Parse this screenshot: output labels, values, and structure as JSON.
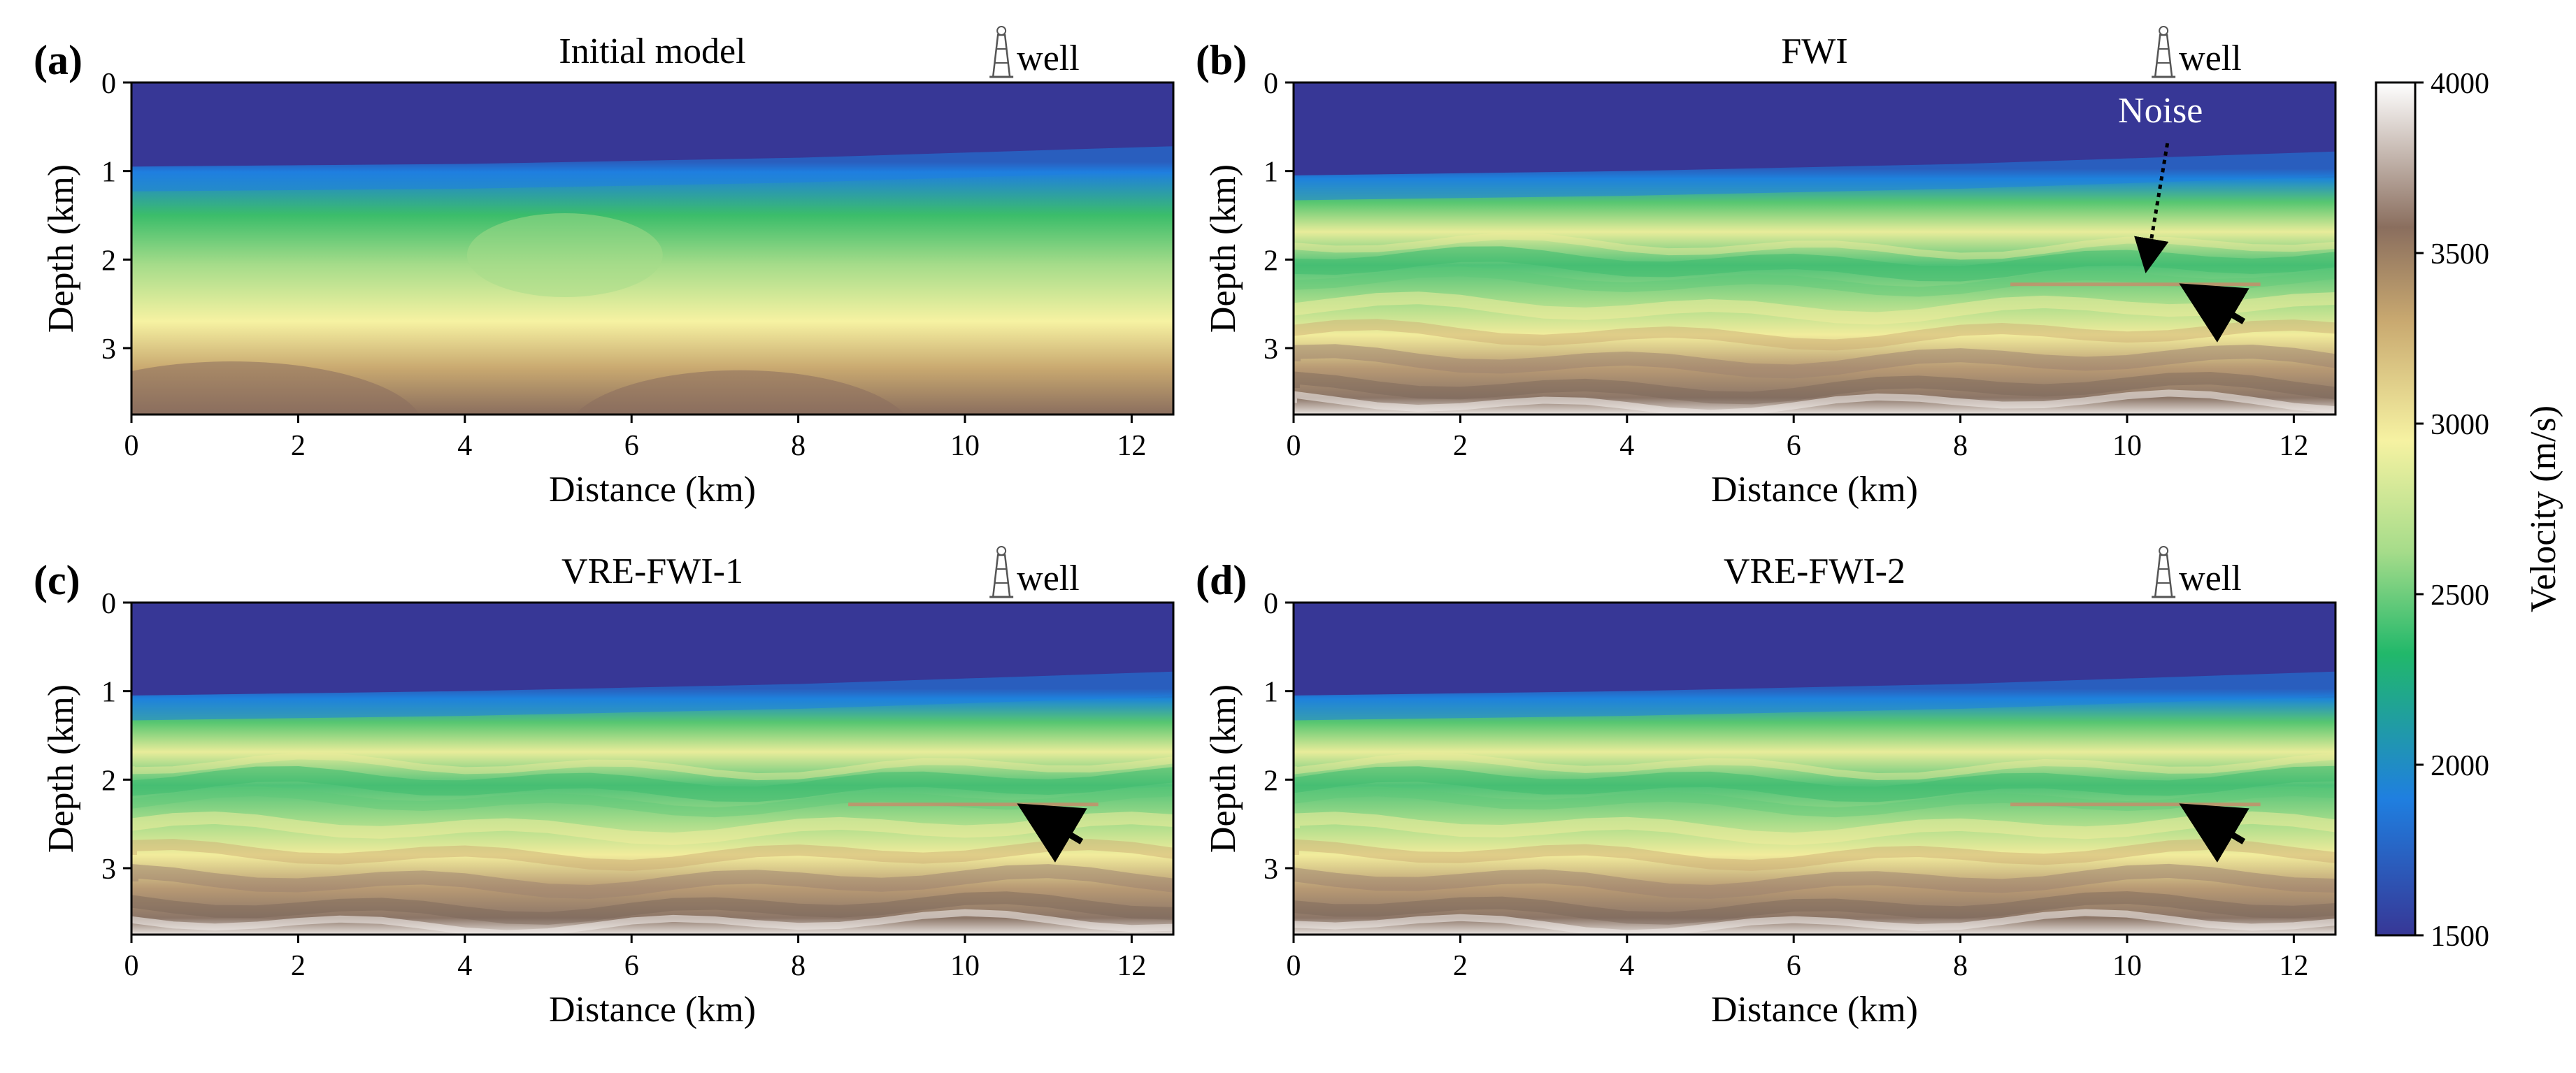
{
  "figure": {
    "colorbar": {
      "label": "Velocity (m/s)",
      "min": 1500,
      "max": 4000,
      "ticks": [
        1500,
        2000,
        2500,
        3000,
        3500,
        4000
      ],
      "tick_labels": [
        "1500",
        "2000",
        "2500",
        "3000",
        "3500",
        "4000"
      ],
      "colormap_stops": [
        "#373796",
        "#1f7fe0",
        "#21b86a",
        "#a6dc8a",
        "#f6f2a2",
        "#c9a970",
        "#8a6e5e",
        "#ffffff"
      ]
    }
  },
  "chart_data": [
    {
      "type": "heatmap",
      "panel_label": "(a)",
      "title": "Initial model",
      "well_label": "well",
      "xlabel": "Distance (km)",
      "ylabel": "Depth (km)",
      "xlim": [
        0,
        12.5
      ],
      "ylim": [
        3.75,
        0
      ],
      "xticks": [
        0,
        2,
        4,
        6,
        8,
        10,
        12
      ],
      "xtick_labels": [
        "0",
        "2",
        "4",
        "6",
        "8",
        "10",
        "12"
      ],
      "yticks": [
        0,
        1,
        2,
        3
      ],
      "ytick_labels": [
        "0",
        "1",
        "2",
        "3"
      ],
      "seabed_depth_km": {
        "x": [
          0,
          4,
          8,
          12.5
        ],
        "z": [
          0.95,
          0.92,
          0.85,
          0.72
        ]
      },
      "arrows": [],
      "annotations": []
    },
    {
      "type": "heatmap",
      "panel_label": "(b)",
      "title": "FWI",
      "well_label": "well",
      "xlabel": "Distance (km)",
      "ylabel": "Depth (km)",
      "xlim": [
        0,
        12.5
      ],
      "ylim": [
        3.75,
        0
      ],
      "xticks": [
        0,
        2,
        4,
        6,
        8,
        10,
        12
      ],
      "xtick_labels": [
        "0",
        "2",
        "4",
        "6",
        "8",
        "10",
        "12"
      ],
      "yticks": [
        0,
        1,
        2,
        3
      ],
      "ytick_labels": [
        "0",
        "1",
        "2",
        "3"
      ],
      "seabed_depth_km": {
        "x": [
          0,
          4,
          8,
          12.5
        ],
        "z": [
          1.05,
          1.0,
          0.92,
          0.78
        ]
      },
      "arrows": [
        {
          "from": [
            11.4,
            2.7
          ],
          "to": [
            10.8,
            2.35
          ]
        }
      ],
      "annotations": [
        {
          "text": "Noise",
          "x": 10.4,
          "z": 0.45,
          "pointer_to": [
            10.25,
            2.0
          ]
        }
      ]
    },
    {
      "type": "heatmap",
      "panel_label": "(c)",
      "title": "VRE-FWI-1",
      "well_label": "well",
      "xlabel": "Distance (km)",
      "ylabel": "Depth (km)",
      "xlim": [
        0,
        12.5
      ],
      "ylim": [
        3.75,
        0
      ],
      "xticks": [
        0,
        2,
        4,
        6,
        8,
        10,
        12
      ],
      "xtick_labels": [
        "0",
        "2",
        "4",
        "6",
        "8",
        "10",
        "12"
      ],
      "yticks": [
        0,
        1,
        2,
        3
      ],
      "ytick_labels": [
        "0",
        "1",
        "2",
        "3"
      ],
      "seabed_depth_km": {
        "x": [
          0,
          4,
          8,
          12.5
        ],
        "z": [
          1.05,
          1.0,
          0.92,
          0.78
        ]
      },
      "arrows": [
        {
          "from": [
            11.4,
            2.7
          ],
          "to": [
            10.8,
            2.35
          ]
        }
      ],
      "annotations": []
    },
    {
      "type": "heatmap",
      "panel_label": "(d)",
      "title": "VRE-FWI-2",
      "well_label": "well",
      "xlabel": "Distance (km)",
      "ylabel": "Depth (km)",
      "xlim": [
        0,
        12.5
      ],
      "ylim": [
        3.75,
        0
      ],
      "xticks": [
        0,
        2,
        4,
        6,
        8,
        10,
        12
      ],
      "xtick_labels": [
        "0",
        "2",
        "4",
        "6",
        "8",
        "10",
        "12"
      ],
      "yticks": [
        0,
        1,
        2,
        3
      ],
      "ytick_labels": [
        "0",
        "1",
        "2",
        "3"
      ],
      "seabed_depth_km": {
        "x": [
          0,
          4,
          8,
          12.5
        ],
        "z": [
          1.05,
          1.0,
          0.92,
          0.78
        ]
      },
      "arrows": [
        {
          "from": [
            11.4,
            2.7
          ],
          "to": [
            10.8,
            2.35
          ]
        }
      ],
      "annotations": []
    }
  ]
}
